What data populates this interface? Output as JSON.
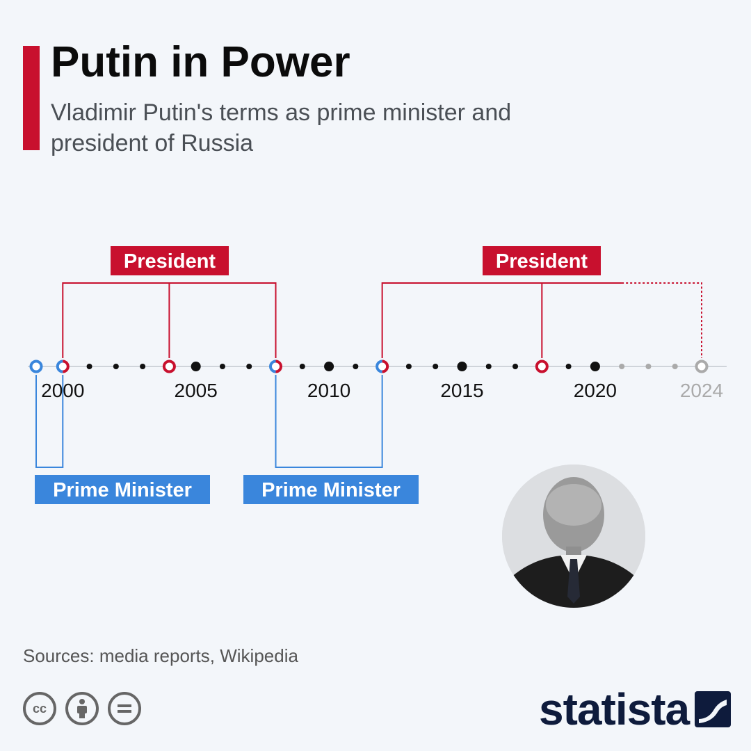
{
  "header": {
    "title": "Putin in Power",
    "subtitle": "Vladimir Putin's terms as prime minister and president of Russia"
  },
  "colors": {
    "accent": "#c8102e",
    "president": "#c8102e",
    "prime_minister": "#3a86dc",
    "axis_line": "#cfd4da",
    "dot": "#111111",
    "future": "#aaaaaa"
  },
  "chart_data": {
    "type": "timeline",
    "x_range": [
      1999,
      2024
    ],
    "ticks": [
      2000,
      2005,
      2010,
      2015,
      2020,
      2024
    ],
    "future_ticks": [
      2024
    ],
    "projected_after": 2020.5,
    "terms": [
      {
        "role": "President",
        "start": 2000,
        "end": 2008,
        "reelected": [
          2004
        ]
      },
      {
        "role": "President",
        "start": 2012,
        "end": 2024,
        "reelected": [
          2018
        ],
        "projected_from": 2021
      },
      {
        "role": "Prime Minister",
        "start": 1999,
        "end": 2000
      },
      {
        "role": "Prime Minister",
        "start": 2008,
        "end": 2012
      }
    ],
    "labels": {
      "president": "President",
      "prime_minister": "Prime Minister"
    }
  },
  "photo": {
    "icon": "portrait-icon"
  },
  "footer": {
    "sources": "Sources: media reports, Wikipedia",
    "license_icons": [
      "cc-icon",
      "attribution-icon",
      "no-derivatives-icon"
    ],
    "cc_text": "cc",
    "brand": "statista"
  }
}
